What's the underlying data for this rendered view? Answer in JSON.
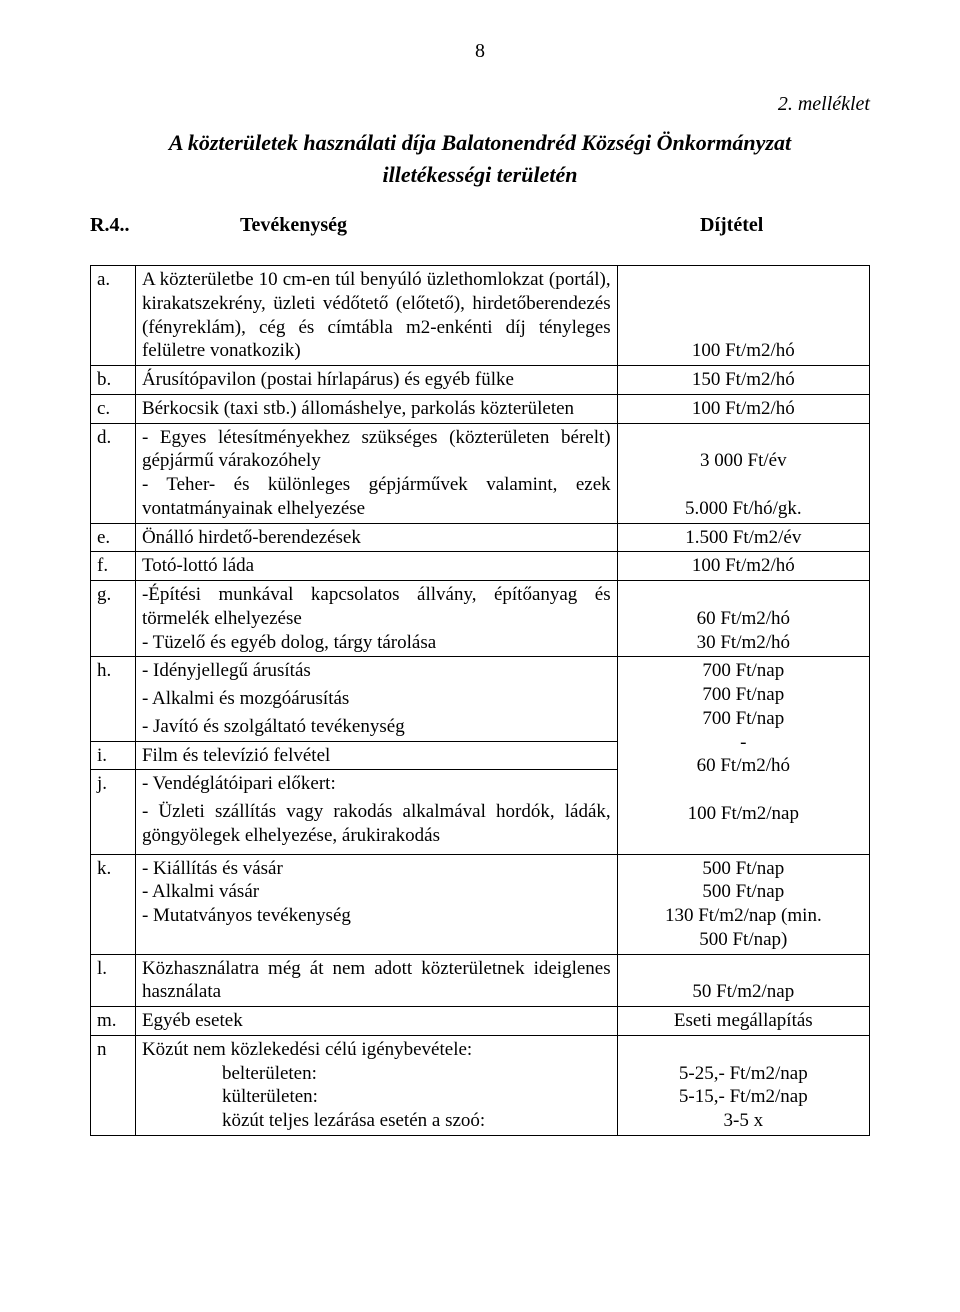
{
  "page_number": "8",
  "annex": "2. melléklet",
  "title_line1": "A közterületek használati díja Balatonendréd Községi Önkormányzat",
  "title_line2": "illetékességi területén",
  "header": {
    "ref": "R.4..",
    "activity": "Tevékenység",
    "fee": "Díjtétel"
  },
  "rows": {
    "a": {
      "label": "a.",
      "desc": "A közterületbe 10 cm-en túl benyúló üzlethomlokzat (portál), kirakatszekrény, üzleti védőtető (előtető), hirdetőberendezés (fényreklám), cég és címtábla m2-enkénti díj tényleges felületre vonatkozik)",
      "fee": "100 Ft/m2/hó"
    },
    "b": {
      "label": "b.",
      "desc": "Árusítópavilon (postai hírlapárus) és egyéb fülke",
      "fee": "150 Ft/m2/hó"
    },
    "c": {
      "label": "c.",
      "desc": "Bérkocsik (taxi stb.) állomáshelye, parkolás közterületen",
      "fee": "100 Ft/m2/hó"
    },
    "d": {
      "label": "d.",
      "desc1": "- Egyes létesítményekhez szükséges (közterületen bérelt) gépjármű várakozóhely",
      "desc2": "- Teher- és különleges gépjárművek valamint, ezek vontatmányainak elhelyezése",
      "fee1": "3 000 Ft/év",
      "fee2": "5.000 Ft/hó/gk."
    },
    "e": {
      "label": "e.",
      "desc": "Önálló hirdető-berendezések",
      "fee": "1.500 Ft/m2/év"
    },
    "f": {
      "label": "f.",
      "desc": "Totó-lottó láda",
      "fee": "100 Ft/m2/hó"
    },
    "g": {
      "label": "g.",
      "desc1": "-Építési munkával kapcsolatos állvány, építőanyag és törmelék elhelyezése",
      "desc2": "- Tüzelő és egyéb dolog, tárgy tárolása",
      "fee1": "60 Ft/m2/hó",
      "fee2": "30 Ft/m2/hó"
    },
    "h": {
      "label": "h.",
      "desc1": "- Idényjellegű árusítás",
      "desc2": "- Alkalmi és mozgóárusítás",
      "desc3": "- Javító és szolgáltató tevékenység",
      "fee1": "700 Ft/nap",
      "fee2": "700 Ft/nap",
      "fee3": "700 Ft/nap"
    },
    "i": {
      "label": "i.",
      "desc": "Film és televízió felvétel",
      "fee": "-"
    },
    "j": {
      "label": "j.",
      "desc1": "- Vendéglátóipari előkert:",
      "desc2": "- Üzleti szállítás vagy rakodás alkalmával hordók, ládák, göngyölegek elhelyezése, árukirakodás",
      "fee1": "60 Ft/m2/hó",
      "fee2": "100 Ft/m2/nap"
    },
    "k": {
      "label": "k.",
      "desc1": "- Kiállítás és vásár",
      "desc2": "- Alkalmi vásár",
      "desc3": "- Mutatványos tevékenység",
      "fee1": "500 Ft/nap",
      "fee2": "500 Ft/nap",
      "fee3": "130 Ft/m2/nap (min.",
      "fee4": "500 Ft/nap)"
    },
    "l": {
      "label": "l.",
      "desc": "Közhasználatra még át nem adott közterületnek ideiglenes használata",
      "fee": "50 Ft/m2/nap"
    },
    "m": {
      "label": "m.",
      "desc": "Egyéb esetek",
      "fee": "Eseti megállapítás"
    },
    "n": {
      "label": "n",
      "desc0": "Közút nem közlekedési célú igénybevétele:",
      "desc1": "belterületen:",
      "desc2": "külterületen:",
      "desc3": "közút teljes lezárása esetén a szoó:",
      "fee1": "5-25,- Ft/m2/nap",
      "fee2": "5-15,- Ft/m2/nap",
      "fee3": "3-5 x"
    }
  }
}
